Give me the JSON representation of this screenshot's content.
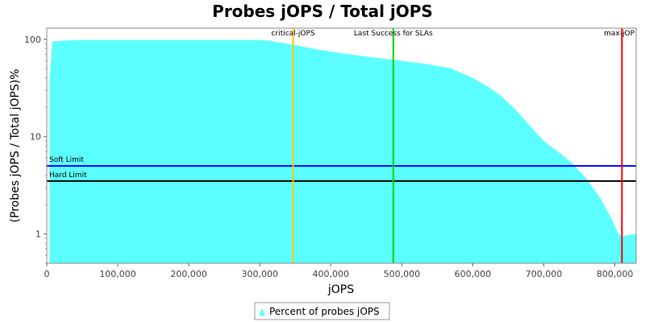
{
  "chart_data": {
    "type": "area",
    "title": "Probes jOPS / Total jOPS",
    "xlabel": "jOPS",
    "ylabel": "(Probes jOPS / Total jOPS)%",
    "x_scale": "linear",
    "y_scale": "log",
    "xlim": [
      0,
      830000
    ],
    "ylim": [
      0.5,
      130
    ],
    "x_ticks": [
      {
        "value": 0,
        "label": "0"
      },
      {
        "value": 100000,
        "label": "100,000"
      },
      {
        "value": 200000,
        "label": "200,000"
      },
      {
        "value": 300000,
        "label": "300,000"
      },
      {
        "value": 400000,
        "label": "400,000"
      },
      {
        "value": 500000,
        "label": "500,000"
      },
      {
        "value": 600000,
        "label": "600,000"
      },
      {
        "value": 700000,
        "label": "700,000"
      },
      {
        "value": 800000,
        "label": "800,000"
      }
    ],
    "y_ticks": [
      {
        "value": 1,
        "label": "1"
      },
      {
        "value": 10,
        "label": "10"
      },
      {
        "value": 100,
        "label": "100"
      }
    ],
    "grid": false,
    "legend_position": "bottom-center",
    "series": [
      {
        "name": "Percent of probes jOPS",
        "color": "#5bffff",
        "x": [
          4000,
          8000,
          40000,
          100000,
          200000,
          300000,
          320000,
          350000,
          380000,
          420000,
          460000,
          500000,
          540000,
          570000,
          600000,
          620000,
          640000,
          660000,
          680000,
          700000,
          720000,
          740000,
          760000,
          780000,
          795000,
          805000,
          812000,
          820000,
          830000
        ],
        "y": [
          40,
          95,
          98,
          98.5,
          98.5,
          98,
          95,
          87,
          79,
          71,
          65,
          60,
          55,
          50,
          40,
          33,
          26,
          19,
          13,
          9,
          7,
          5.3,
          3.7,
          2.3,
          1.45,
          1.0,
          0.95,
          0.98,
          1.0
        ]
      }
    ],
    "vertical_markers": [
      {
        "label": "critical-jOPS",
        "x": 347000,
        "color": "#ffc800"
      },
      {
        "label": "Last Success for SLAs",
        "x": 488000,
        "color": "#00dd00"
      },
      {
        "label": "max-jOP",
        "x": 810000,
        "color": "#ff0000"
      }
    ],
    "horizontal_markers": [
      {
        "label": "Soft Limit",
        "y": 5,
        "color": "#0000ff"
      },
      {
        "label": "Hard Limit",
        "y": 3.5,
        "color": "#000000"
      }
    ]
  }
}
